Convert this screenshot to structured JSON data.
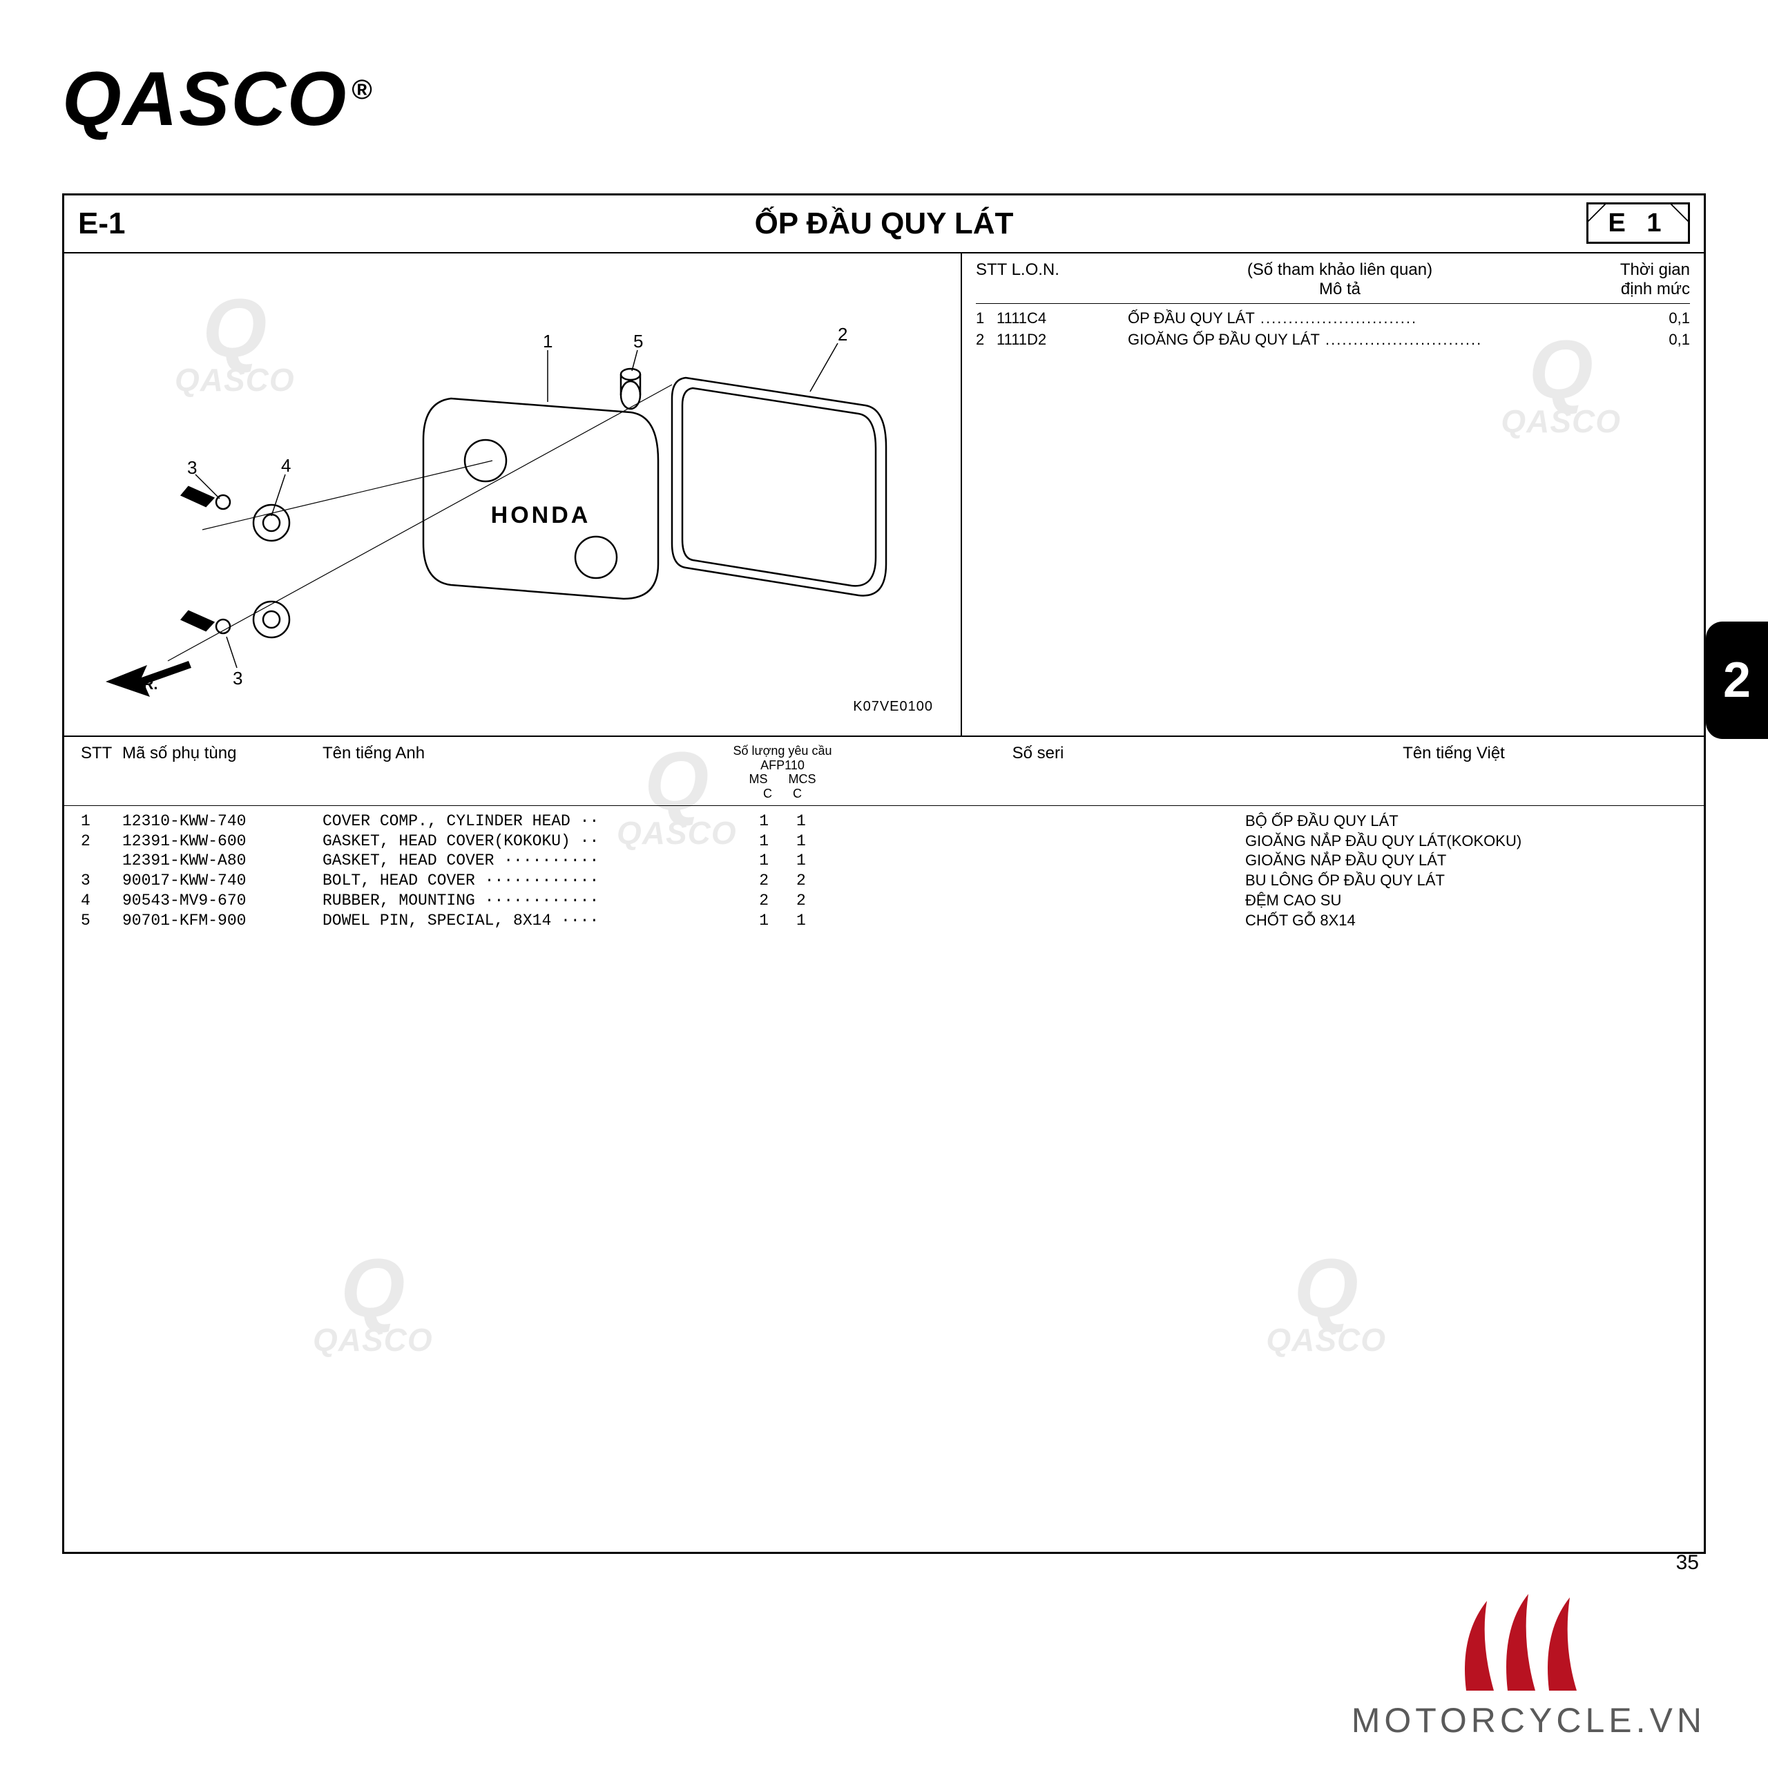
{
  "brand": "QASCO",
  "register_mark": "®",
  "header": {
    "code_left": "E-1",
    "title": "ỐP ĐẦU QUY LÁT",
    "code_right": "E 1"
  },
  "ref": {
    "head_lon": "STT  L.O.N.",
    "head_mid_top": "(Số tham khảo liên quan)",
    "head_mid_bot": "Mô tả",
    "head_time_top": "Thời gian",
    "head_time_bot": "định mức",
    "rows": [
      {
        "n": "1",
        "lon": "1111C4",
        "desc": "ỐP ĐẦU QUY LÁT",
        "time": "0,1"
      },
      {
        "n": "2",
        "lon": "1111D2",
        "desc": "GIOĂNG ỐP ĐẦU QUY LÁT",
        "time": "0,1"
      }
    ]
  },
  "parts_header": {
    "stt": "STT",
    "part": "Mã số phụ tùng",
    "eng": "Tên tiếng Anh",
    "qty_top": "Số lượng yêu cầu",
    "qty_model": "AFP110",
    "qty_c1": "MS",
    "qty_c2": "MCS",
    "qty_cc": "C",
    "seri": "Số seri",
    "vi": "Tên tiếng Việt"
  },
  "parts": [
    {
      "stt": "1",
      "pn": "12310-KWW-740",
      "eng": "COVER COMP., CYLINDER HEAD ··",
      "ms": "1",
      "mcs": "1",
      "vi": "BỘ ỐP ĐẦU QUY LÁT"
    },
    {
      "stt": "2",
      "pn": "12391-KWW-600",
      "eng": "GASKET, HEAD COVER(KOKOKU) ··",
      "ms": "1",
      "mcs": "1",
      "vi": "GIOĂNG NẮP ĐẦU QUY LÁT(KOKOKU)"
    },
    {
      "stt": "",
      "pn": "12391-KWW-A80",
      "eng": "GASKET, HEAD COVER ··········",
      "ms": "1",
      "mcs": "1",
      "vi": "GIOĂNG NẮP ĐẦU QUY LÁT"
    },
    {
      "stt": "3",
      "pn": "90017-KWW-740",
      "eng": "BOLT, HEAD COVER ············",
      "ms": "2",
      "mcs": "2",
      "vi": "BU LÔNG ỐP ĐẦU QUY LÁT"
    },
    {
      "stt": "4",
      "pn": "90543-MV9-670",
      "eng": "RUBBER, MOUNTING ············",
      "ms": "2",
      "mcs": "2",
      "vi": "ĐỆM CAO SU"
    },
    {
      "stt": "5",
      "pn": "90701-KFM-900",
      "eng": "DOWEL PIN, SPECIAL, 8X14 ····",
      "ms": "1",
      "mcs": "1",
      "vi": "CHỐT GỖ 8X14"
    }
  ],
  "diagram": {
    "fr_label": "FR.",
    "code": "K07VE0100",
    "callouts": [
      "1",
      "2",
      "3",
      "4",
      "5"
    ]
  },
  "side_tab": "2",
  "page_number": "35",
  "footer_brand": "MOTORCYCLE.VN",
  "colors": {
    "motorcycle_red": "#b81221",
    "motorcycle_grey": "#5a5a5a"
  }
}
